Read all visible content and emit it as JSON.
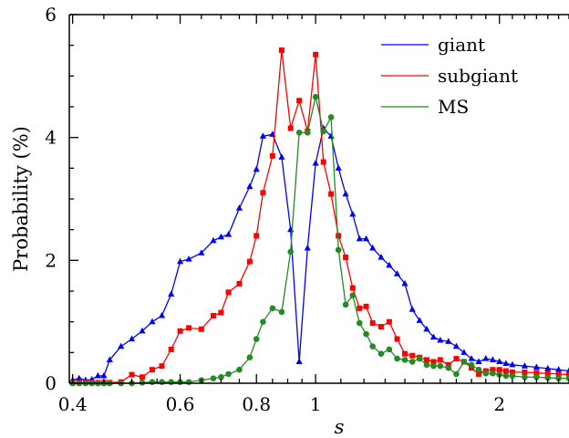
{
  "chart_data": {
    "type": "line",
    "xlabel": "s",
    "ylabel": "Probability (%)",
    "xscale": "log",
    "xlim": [
      0.395,
      2.6
    ],
    "ylim": [
      0,
      6
    ],
    "x_ticks": [
      0.4,
      0.6,
      0.8,
      1,
      2
    ],
    "x_tick_labels": [
      "0.4",
      "0.6",
      "0.8",
      "1",
      "2"
    ],
    "y_ticks": [
      0,
      2,
      4,
      6
    ],
    "y_tick_labels": [
      "0",
      "2",
      "4",
      "6"
    ],
    "legend_position": "top-right",
    "grid": false,
    "x": [
      0.4,
      0.41,
      0.42,
      0.43,
      0.44,
      0.45,
      0.46,
      0.48,
      0.5,
      0.52,
      0.54,
      0.56,
      0.58,
      0.6,
      0.62,
      0.65,
      0.68,
      0.7,
      0.72,
      0.75,
      0.78,
      0.8,
      0.82,
      0.85,
      0.88,
      0.91,
      0.94,
      0.97,
      1.0,
      1.03,
      1.06,
      1.09,
      1.12,
      1.15,
      1.18,
      1.21,
      1.24,
      1.28,
      1.32,
      1.36,
      1.4,
      1.44,
      1.48,
      1.52,
      1.56,
      1.6,
      1.65,
      1.7,
      1.75,
      1.8,
      1.85,
      1.9,
      1.95,
      2.0,
      2.05,
      2.1,
      2.2,
      2.3,
      2.4,
      2.5,
      2.6
    ],
    "series": [
      {
        "name": "giant",
        "color": "#0000ff",
        "marker": "triangle",
        "values": [
          0.05,
          0.08,
          0.05,
          0.06,
          0.12,
          0.12,
          0.38,
          0.6,
          0.72,
          0.85,
          1.0,
          1.1,
          1.45,
          1.98,
          2.02,
          2.12,
          2.32,
          2.38,
          2.42,
          2.85,
          3.2,
          3.48,
          4.02,
          4.05,
          3.68,
          2.5,
          0.35,
          2.2,
          3.58,
          4.15,
          4.02,
          3.5,
          3.08,
          2.75,
          2.35,
          2.35,
          2.2,
          2.05,
          1.92,
          1.78,
          1.62,
          1.2,
          1.02,
          0.88,
          0.75,
          0.7,
          0.68,
          0.6,
          0.5,
          0.4,
          0.35,
          0.4,
          0.38,
          0.35,
          0.32,
          0.3,
          0.28,
          0.26,
          0.24,
          0.22,
          0.2
        ]
      },
      {
        "name": "subgiant",
        "color": "#ff0000",
        "marker": "square",
        "values": [
          0.01,
          0.01,
          0.01,
          0.01,
          0.01,
          0.01,
          0.01,
          0.02,
          0.14,
          0.1,
          0.22,
          0.28,
          0.55,
          0.85,
          0.9,
          0.88,
          1.1,
          1.15,
          1.48,
          1.62,
          1.98,
          2.4,
          3.1,
          3.7,
          5.42,
          4.15,
          4.6,
          4.1,
          5.35,
          3.6,
          3.08,
          2.4,
          2.05,
          1.55,
          1.22,
          1.25,
          0.98,
          0.92,
          1.0,
          0.72,
          0.48,
          0.45,
          0.42,
          0.38,
          0.35,
          0.38,
          0.3,
          0.4,
          0.35,
          0.25,
          0.15,
          0.2,
          0.22,
          0.22,
          0.2,
          0.18,
          0.18,
          0.17,
          0.16,
          0.15,
          0.14
        ]
      },
      {
        "name": "MS",
        "color": "#228b22",
        "marker": "circle",
        "values": [
          0.0,
          0.0,
          0.0,
          0.0,
          0.0,
          0.0,
          0.0,
          0.0,
          0.0,
          0.01,
          0.02,
          0.02,
          0.02,
          0.02,
          0.02,
          0.05,
          0.08,
          0.1,
          0.15,
          0.22,
          0.42,
          0.72,
          1.0,
          1.22,
          1.16,
          2.14,
          4.08,
          4.08,
          4.66,
          4.1,
          4.33,
          2.17,
          1.28,
          1.43,
          0.98,
          0.8,
          0.6,
          0.48,
          0.55,
          0.4,
          0.38,
          0.35,
          0.4,
          0.3,
          0.28,
          0.28,
          0.25,
          0.15,
          0.35,
          0.3,
          0.22,
          0.16,
          0.16,
          0.14,
          0.12,
          0.12,
          0.1,
          0.1,
          0.09,
          0.08,
          0.08
        ]
      }
    ]
  }
}
